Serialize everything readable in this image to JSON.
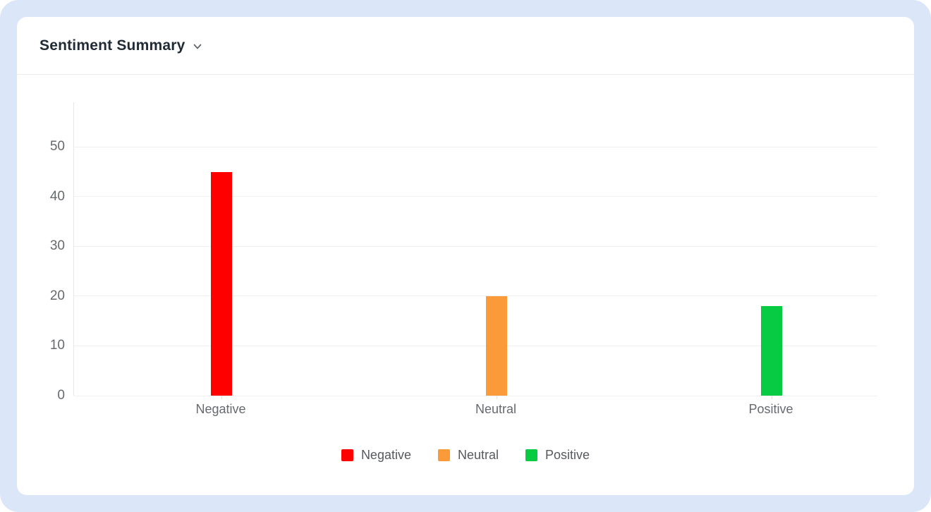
{
  "header": {
    "title": "Sentiment Summary",
    "dropdown_icon": "chevron-down"
  },
  "theme": {
    "page_bg": "#ffffff",
    "shell_bg": "#dbe7f8",
    "card_bg": "#ffffff",
    "divider": "#ebebeb",
    "grid_line": "#f0f0f0",
    "axis_line": "#e7e7e7",
    "tick_text": "#66696e",
    "title_text": "#212b36",
    "legend_text": "#56595e"
  },
  "chart_data": {
    "type": "bar",
    "title": "Sentiment Summary",
    "categories": [
      "Negative",
      "Neutral",
      "Positive"
    ],
    "values": [
      45,
      20,
      18
    ],
    "bar_colors": [
      "#ff0000",
      "#fa9a38",
      "#07cb43"
    ],
    "xlabel": "",
    "ylabel": "",
    "ylim": [
      0,
      59
    ],
    "yticks": [
      0,
      10,
      20,
      30,
      40,
      50
    ],
    "grid": true,
    "legend": {
      "position": "bottom",
      "entries": [
        {
          "label": "Negative",
          "color": "#ff0000"
        },
        {
          "label": "Neutral",
          "color": "#fa9a38"
        },
        {
          "label": "Positive",
          "color": "#07cb43"
        }
      ]
    }
  }
}
